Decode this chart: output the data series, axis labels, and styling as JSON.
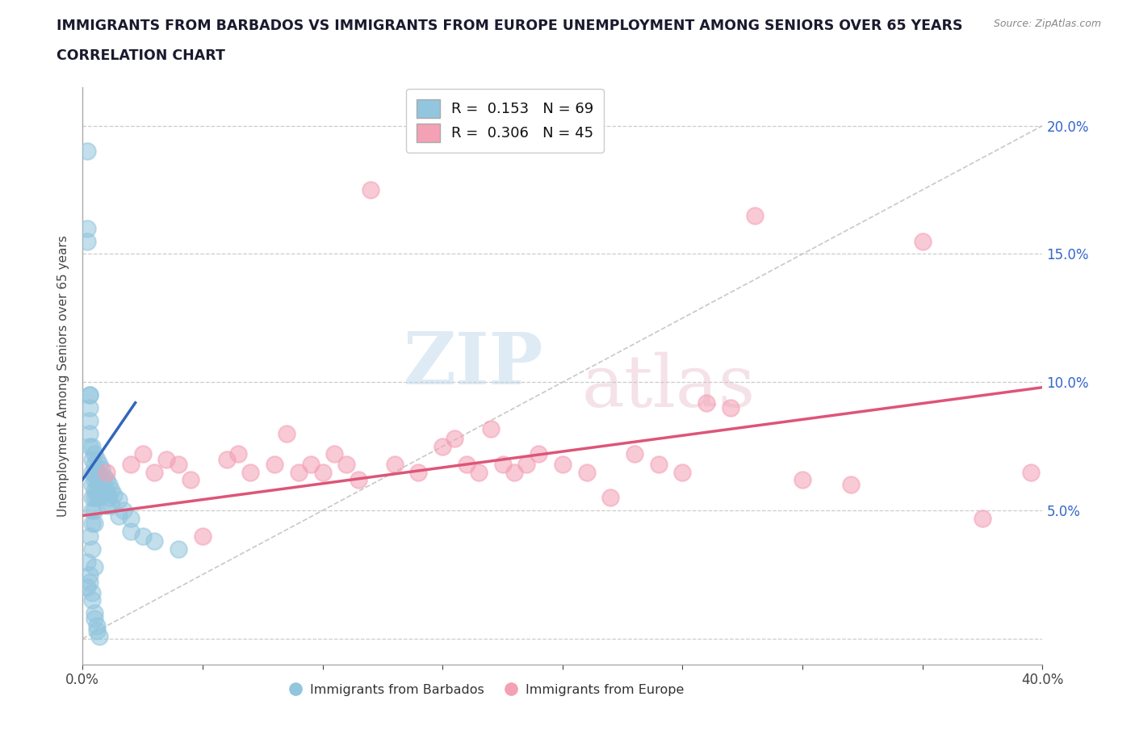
{
  "title_line1": "IMMIGRANTS FROM BARBADOS VS IMMIGRANTS FROM EUROPE UNEMPLOYMENT AMONG SENIORS OVER 65 YEARS",
  "title_line2": "CORRELATION CHART",
  "source_text": "Source: ZipAtlas.com",
  "ylabel": "Unemployment Among Seniors over 65 years",
  "xmin": 0.0,
  "xmax": 0.4,
  "ymin": -0.01,
  "ymax": 0.215,
  "color_blue": "#92C5DE",
  "color_pink": "#F4A0B5",
  "trendline_blue": "#3366BB",
  "trendline_pink": "#DD5577",
  "refline_color": "#BBBBBB",
  "background_color": "#FFFFFF",
  "watermark_zip": "ZIP",
  "watermark_atlas": "atlas",
  "barbados_x": [
    0.002,
    0.002,
    0.002,
    0.003,
    0.003,
    0.003,
    0.003,
    0.003,
    0.003,
    0.004,
    0.004,
    0.004,
    0.004,
    0.004,
    0.004,
    0.004,
    0.005,
    0.005,
    0.005,
    0.005,
    0.005,
    0.005,
    0.005,
    0.005,
    0.006,
    0.006,
    0.006,
    0.006,
    0.006,
    0.007,
    0.007,
    0.007,
    0.007,
    0.008,
    0.008,
    0.008,
    0.009,
    0.009,
    0.01,
    0.01,
    0.01,
    0.011,
    0.011,
    0.012,
    0.012,
    0.013,
    0.015,
    0.015,
    0.017,
    0.02,
    0.02,
    0.025,
    0.03,
    0.04,
    0.002,
    0.003,
    0.003,
    0.004,
    0.004,
    0.005,
    0.005,
    0.006,
    0.006,
    0.007,
    0.003,
    0.004,
    0.005,
    0.002
  ],
  "barbados_y": [
    0.19,
    0.16,
    0.155,
    0.095,
    0.095,
    0.09,
    0.085,
    0.08,
    0.075,
    0.075,
    0.07,
    0.065,
    0.06,
    0.055,
    0.05,
    0.045,
    0.072,
    0.068,
    0.065,
    0.062,
    0.058,
    0.055,
    0.05,
    0.045,
    0.07,
    0.065,
    0.062,
    0.058,
    0.055,
    0.068,
    0.064,
    0.06,
    0.055,
    0.066,
    0.062,
    0.058,
    0.063,
    0.058,
    0.062,
    0.057,
    0.052,
    0.06,
    0.055,
    0.058,
    0.052,
    0.056,
    0.054,
    0.048,
    0.05,
    0.047,
    0.042,
    0.04,
    0.038,
    0.035,
    0.03,
    0.025,
    0.022,
    0.018,
    0.015,
    0.01,
    0.008,
    0.005,
    0.003,
    0.001,
    0.04,
    0.035,
    0.028,
    0.02
  ],
  "europe_x": [
    0.01,
    0.02,
    0.025,
    0.03,
    0.035,
    0.04,
    0.045,
    0.05,
    0.06,
    0.065,
    0.07,
    0.08,
    0.085,
    0.09,
    0.095,
    0.1,
    0.105,
    0.11,
    0.115,
    0.12,
    0.13,
    0.14,
    0.15,
    0.155,
    0.16,
    0.165,
    0.17,
    0.175,
    0.18,
    0.185,
    0.19,
    0.2,
    0.21,
    0.22,
    0.23,
    0.24,
    0.25,
    0.26,
    0.27,
    0.28,
    0.3,
    0.32,
    0.35,
    0.375,
    0.395
  ],
  "europe_y": [
    0.065,
    0.068,
    0.072,
    0.065,
    0.07,
    0.068,
    0.062,
    0.04,
    0.07,
    0.072,
    0.065,
    0.068,
    0.08,
    0.065,
    0.068,
    0.065,
    0.072,
    0.068,
    0.062,
    0.175,
    0.068,
    0.065,
    0.075,
    0.078,
    0.068,
    0.065,
    0.082,
    0.068,
    0.065,
    0.068,
    0.072,
    0.068,
    0.065,
    0.055,
    0.072,
    0.068,
    0.065,
    0.092,
    0.09,
    0.165,
    0.062,
    0.06,
    0.155,
    0.047,
    0.065
  ],
  "blue_trend_x": [
    0.0,
    0.022
  ],
  "blue_trend_y": [
    0.062,
    0.092
  ],
  "pink_trend_x": [
    0.0,
    0.4
  ],
  "pink_trend_y": [
    0.048,
    0.098
  ]
}
